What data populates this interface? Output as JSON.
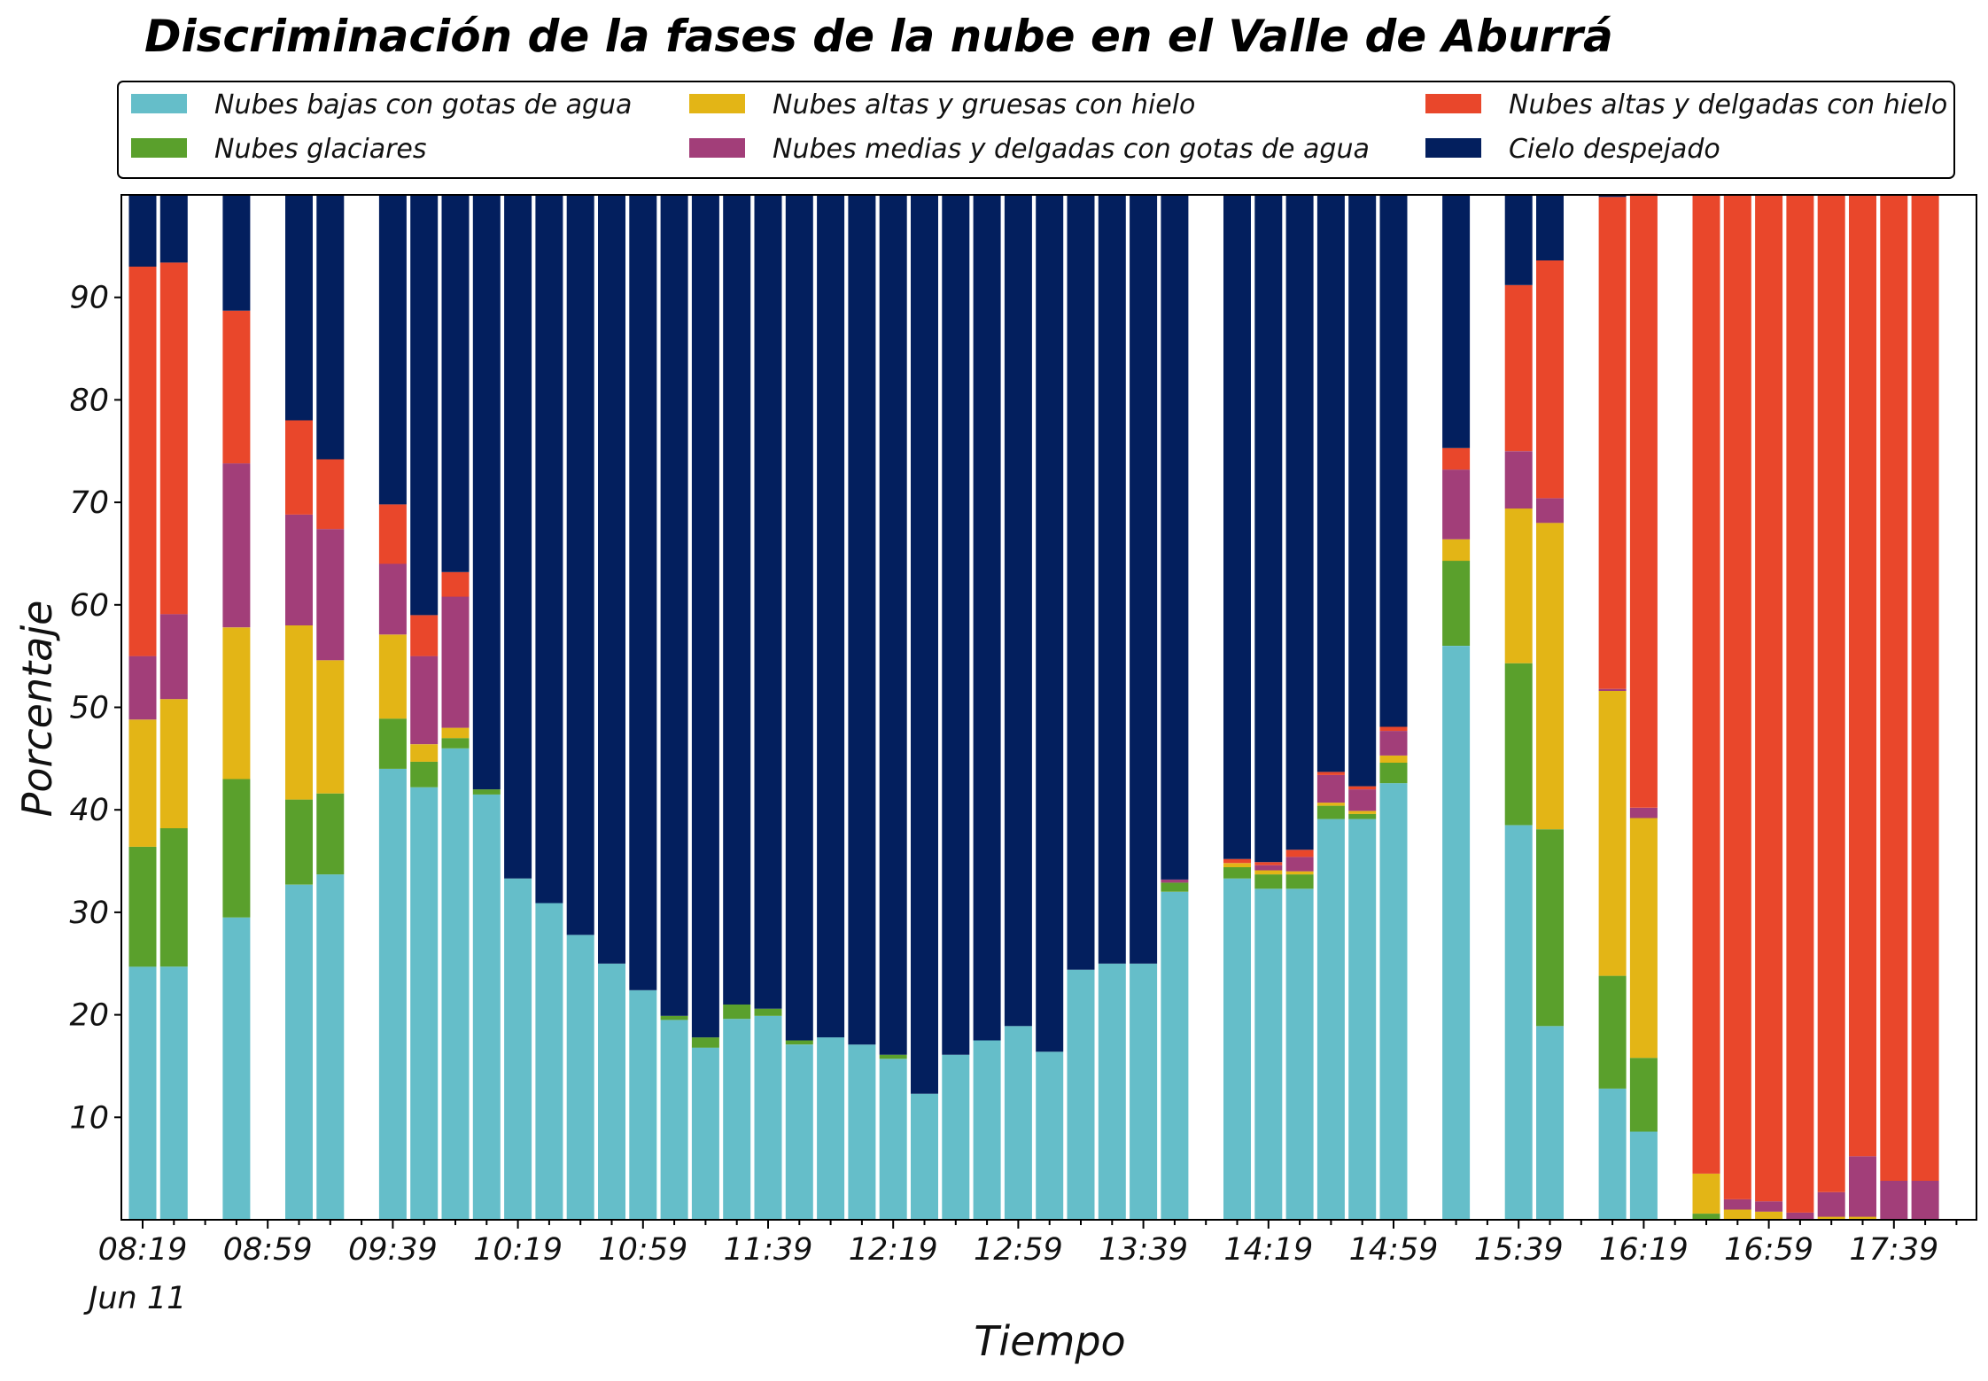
{
  "chart_data": {
    "type": "bar",
    "stacked": true,
    "title": "Discriminación de la fases de la nube en el Valle de Aburrá",
    "xlabel": "Tiempo",
    "ylabel": "Porcentaje",
    "ylim": [
      0,
      100
    ],
    "yticks": [
      10,
      20,
      30,
      40,
      50,
      60,
      70,
      80,
      90
    ],
    "xtick_labels": [
      "08:19",
      "08:59",
      "09:39",
      "10:19",
      "10:59",
      "11:39",
      "12:19",
      "12:59",
      "13:39",
      "14:19",
      "14:59",
      "15:39",
      "16:19",
      "16:59",
      "17:39"
    ],
    "xtick_sublabel": "Jun 11",
    "legend_position": "top",
    "grid": false,
    "x": [
      "08:19",
      "08:29",
      "08:39",
      "08:49",
      "08:59",
      "09:09",
      "09:19",
      "09:29",
      "09:39",
      "09:49",
      "09:59",
      "10:09",
      "10:19",
      "10:29",
      "10:39",
      "10:49",
      "10:59",
      "11:09",
      "11:19",
      "11:29",
      "11:39",
      "11:49",
      "11:59",
      "12:09",
      "12:19",
      "12:29",
      "12:39",
      "12:49",
      "12:59",
      "13:09",
      "13:19",
      "13:29",
      "13:39",
      "13:49",
      "13:59",
      "14:09",
      "14:19",
      "14:29",
      "14:39",
      "14:49",
      "14:59",
      "15:09",
      "15:19",
      "15:29",
      "15:39",
      "15:49",
      "15:59",
      "16:09",
      "16:19",
      "16:29",
      "16:39",
      "16:49",
      "16:59",
      "17:09",
      "17:19",
      "17:29",
      "17:39",
      "17:49"
    ],
    "series": [
      {
        "name": "Nubes bajas con gotas de agua",
        "color": "#65bec9",
        "values": [
          24.7,
          24.7,
          null,
          29.5,
          null,
          32.7,
          33.7,
          null,
          44.0,
          42.2,
          46.0,
          41.5,
          33.3,
          30.9,
          27.8,
          25.0,
          22.4,
          19.5,
          16.8,
          19.6,
          19.9,
          17.1,
          17.8,
          17.1,
          15.7,
          12.3,
          16.1,
          17.5,
          18.9,
          16.4,
          24.4,
          25.0,
          25.0,
          32.0,
          null,
          33.3,
          32.3,
          32.3,
          39.1,
          39.1,
          42.6,
          null,
          56.0,
          null,
          38.5,
          18.9,
          null,
          12.8,
          8.6,
          null,
          0,
          0,
          0,
          0,
          0,
          0,
          0,
          0
        ]
      },
      {
        "name": "Nubes glaciares",
        "color": "#5aa02c",
        "values": [
          11.7,
          13.5,
          null,
          13.5,
          null,
          8.3,
          7.9,
          null,
          4.9,
          2.5,
          1.0,
          0.5,
          0,
          0,
          0,
          0,
          0,
          0.4,
          1.0,
          1.4,
          0.7,
          0.4,
          0,
          0,
          0.4,
          0,
          0,
          0,
          0,
          0,
          0,
          0,
          0,
          0.9,
          null,
          1.1,
          1.4,
          1.4,
          1.3,
          0.5,
          2.0,
          null,
          8.3,
          null,
          15.8,
          19.2,
          null,
          11.0,
          7.2,
          null,
          0.6,
          0,
          0,
          0,
          0,
          0,
          0,
          0
        ]
      },
      {
        "name": "Nubes altas y gruesas con hielo",
        "color": "#e3b516",
        "values": [
          12.4,
          12.6,
          null,
          14.8,
          null,
          17.0,
          13.0,
          null,
          8.2,
          1.7,
          1.0,
          0,
          0,
          0,
          0,
          0,
          0,
          0,
          0,
          0,
          0,
          0,
          0,
          0,
          0,
          0,
          0,
          0,
          0,
          0,
          0,
          0,
          0,
          0,
          null,
          0.4,
          0.4,
          0.3,
          0.3,
          0.3,
          0.7,
          null,
          2.1,
          null,
          15.1,
          29.9,
          null,
          27.8,
          23.4,
          null,
          3.9,
          1.0,
          0.8,
          0,
          0.3,
          0.3,
          0,
          0
        ]
      },
      {
        "name": "Nubes medias y delgadas con gotas de agua",
        "color": "#a23e79",
        "values": [
          6.2,
          8.3,
          null,
          16.0,
          null,
          10.8,
          12.8,
          null,
          6.9,
          8.6,
          12.8,
          0,
          0,
          0,
          0,
          0,
          0,
          0,
          0,
          0,
          0,
          0,
          0,
          0,
          0,
          0,
          0,
          0,
          0,
          0,
          0,
          0,
          0,
          0.3,
          null,
          0,
          0.5,
          1.4,
          2.7,
          2.1,
          2.4,
          null,
          6.8,
          null,
          5.6,
          2.4,
          null,
          0.2,
          1.0,
          null,
          0,
          1.0,
          1.0,
          0.7,
          2.4,
          5.9,
          3.8,
          3.8
        ]
      },
      {
        "name": "Nubes altas y delgadas con hielo",
        "color": "#e9472b",
        "values": [
          38.0,
          34.3,
          null,
          14.9,
          null,
          9.2,
          6.8,
          null,
          5.8,
          4.0,
          2.4,
          0,
          0,
          0,
          0,
          0,
          0,
          0,
          0,
          0,
          0,
          0,
          0,
          0,
          0,
          0,
          0,
          0,
          0,
          0,
          0,
          0,
          0,
          0,
          null,
          0.4,
          0.3,
          0.7,
          0.3,
          0.3,
          0.4,
          null,
          2.1,
          null,
          16.2,
          23.2,
          null,
          48.0,
          59.9,
          null,
          95.5,
          98.0,
          98.2,
          99.3,
          97.3,
          93.8,
          96.2,
          96.2
        ]
      },
      {
        "name": "Cielo despejado",
        "color": "#031f5e",
        "values": [
          7.0,
          6.6,
          null,
          11.3,
          null,
          22.0,
          25.8,
          null,
          30.2,
          41.0,
          36.8,
          58.0,
          66.7,
          69.1,
          72.2,
          75.0,
          77.6,
          80.1,
          82.2,
          79.0,
          79.4,
          82.5,
          82.2,
          82.9,
          83.9,
          87.7,
          83.9,
          82.5,
          81.1,
          83.6,
          75.6,
          75.0,
          75.0,
          66.8,
          null,
          64.8,
          65.1,
          63.9,
          56.3,
          57.7,
          51.9,
          null,
          24.7,
          null,
          8.8,
          6.4,
          null,
          0.2,
          0,
          null,
          0,
          0,
          0,
          0,
          0,
          0,
          0,
          0
        ]
      }
    ]
  }
}
